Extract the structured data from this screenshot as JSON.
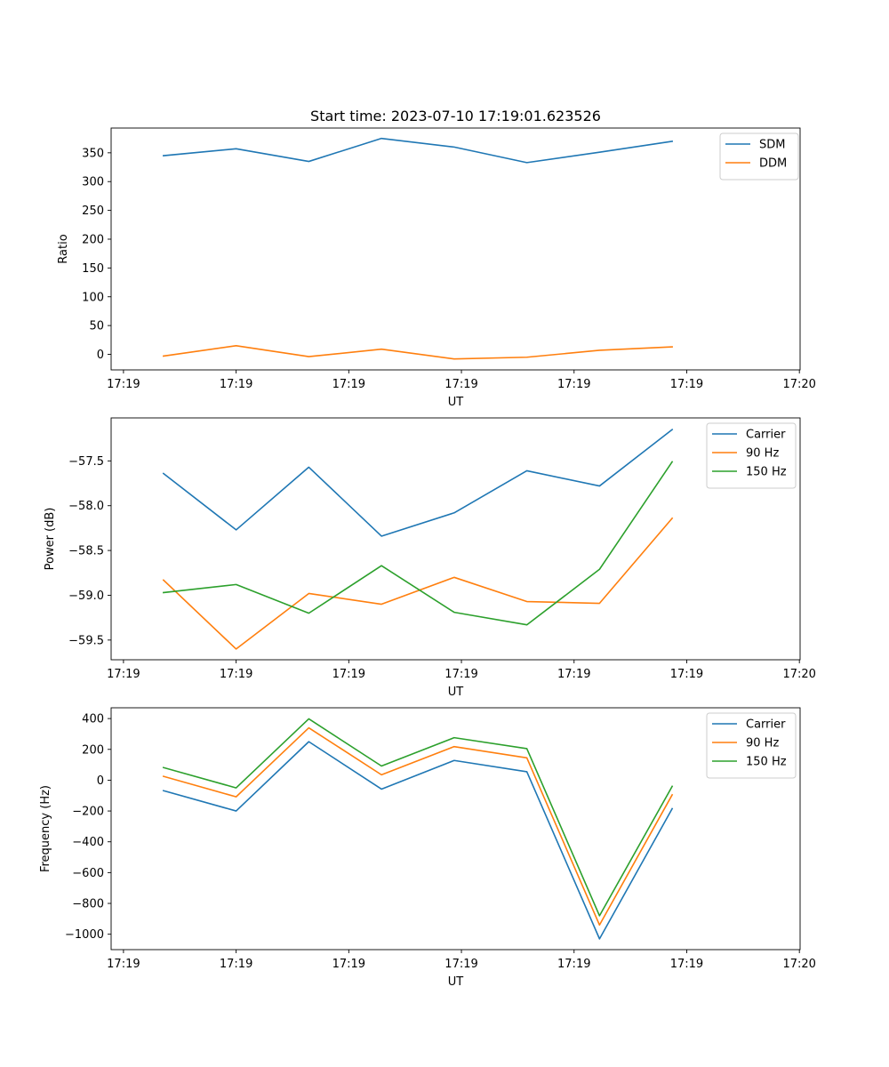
{
  "figure": {
    "title": "Start time: 2023-07-10 17:19:01.623526"
  },
  "chart_data": [
    {
      "type": "line",
      "title": "Start time: 2023-07-10 17:19:01.623526",
      "xlabel": "UT",
      "ylabel": "Ratio",
      "x": [
        1,
        2,
        3,
        4,
        5,
        6,
        7,
        8
      ],
      "xlim": [
        0.28,
        9.76
      ],
      "x_ticks": [
        0.45,
        2.0,
        3.55,
        5.1,
        6.65,
        8.2,
        9.75
      ],
      "x_tick_labels": [
        "17:19",
        "17:19",
        "17:19",
        "17:19",
        "17:19",
        "17:19",
        "17:20"
      ],
      "ylim": [
        -27,
        393
      ],
      "y_ticks": [
        0,
        50,
        100,
        150,
        200,
        250,
        300,
        350
      ],
      "y_tick_labels": [
        "0",
        "50",
        "100",
        "150",
        "200",
        "250",
        "300",
        "350"
      ],
      "legend_position": "top-right",
      "series": [
        {
          "name": "SDM",
          "color": "#1f77b4",
          "values": [
            345,
            357,
            335,
            375,
            360,
            333,
            351,
            370
          ]
        },
        {
          "name": "DDM",
          "color": "#ff7f0e",
          "values": [
            -3,
            15,
            -4,
            9,
            -8,
            -5,
            7,
            13
          ]
        }
      ]
    },
    {
      "type": "line",
      "title": "",
      "xlabel": "UT",
      "ylabel": "Power (dB)",
      "x": [
        1,
        2,
        3,
        4,
        5,
        6,
        7,
        8
      ],
      "xlim": [
        0.28,
        9.76
      ],
      "x_ticks": [
        0.45,
        2.0,
        3.55,
        5.1,
        6.65,
        8.2,
        9.75
      ],
      "x_tick_labels": [
        "17:19",
        "17:19",
        "17:19",
        "17:19",
        "17:19",
        "17:19",
        "17:20"
      ],
      "ylim": [
        -59.72,
        -57.02
      ],
      "y_ticks": [
        -59.5,
        -59.0,
        -58.5,
        -58.0,
        -57.5
      ],
      "y_tick_labels": [
        "−59.5",
        "−59.0",
        "−58.5",
        "−58.0",
        "−57.5"
      ],
      "legend_position": "top-right",
      "series": [
        {
          "name": "Carrier",
          "color": "#1f77b4",
          "values": [
            -57.64,
            -58.27,
            -57.57,
            -58.34,
            -58.08,
            -57.61,
            -57.78,
            -57.15
          ]
        },
        {
          "name": "90 Hz",
          "color": "#ff7f0e",
          "values": [
            -58.83,
            -59.6,
            -58.98,
            -59.1,
            -58.8,
            -59.07,
            -59.09,
            -58.14
          ]
        },
        {
          "name": "150 Hz",
          "color": "#2ca02c",
          "values": [
            -58.97,
            -58.88,
            -59.2,
            -58.67,
            -59.19,
            -59.33,
            -58.71,
            -57.51
          ]
        }
      ]
    },
    {
      "type": "line",
      "title": "",
      "xlabel": "UT",
      "ylabel": "Frequency (Hz)",
      "x": [
        1,
        2,
        3,
        4,
        5,
        6,
        7,
        8
      ],
      "xlim": [
        0.28,
        9.76
      ],
      "x_ticks": [
        0.45,
        2.0,
        3.55,
        5.1,
        6.65,
        8.2,
        9.75
      ],
      "x_tick_labels": [
        "17:19",
        "17:19",
        "17:19",
        "17:19",
        "17:19",
        "17:19",
        "17:20"
      ],
      "ylim": [
        -1100,
        470
      ],
      "y_ticks": [
        -1000,
        -800,
        -600,
        -400,
        -200,
        0,
        200,
        400
      ],
      "y_tick_labels": [
        "−1000",
        "−800",
        "−600",
        "−400",
        "−200",
        "0",
        "200",
        "400"
      ],
      "legend_position": "top-right",
      "series": [
        {
          "name": "Carrier",
          "color": "#1f77b4",
          "values": [
            -68,
            -200,
            250,
            -58,
            128,
            55,
            -1030,
            -185
          ]
        },
        {
          "name": "90 Hz",
          "color": "#ff7f0e",
          "values": [
            25,
            -108,
            340,
            35,
            218,
            145,
            -940,
            -95
          ]
        },
        {
          "name": "150 Hz",
          "color": "#2ca02c",
          "values": [
            82,
            -50,
            398,
            92,
            276,
            205,
            -880,
            -40
          ]
        }
      ]
    }
  ]
}
